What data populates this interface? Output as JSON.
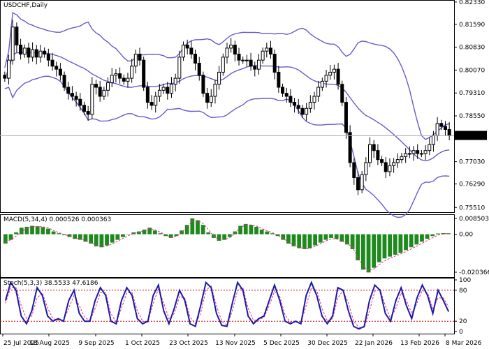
{
  "chart_data": [
    {
      "type": "candlestick",
      "panel": "price",
      "title": "USDCHF,Daily",
      "current_price": "0.77890",
      "y_ticks": [
        "0.82330",
        "0.81590",
        "0.80830",
        "0.80070",
        "0.79310",
        "0.78550",
        "0.77030",
        "0.76290",
        "0.75510"
      ],
      "ylim": [
        0.754,
        0.8235
      ],
      "bollinger_bands": true,
      "x_tick_labels": [
        "25 Jul 2025",
        "18 Aug 2025",
        "9 Sep 2025",
        "1 Oct 2025",
        "23 Oct 2025",
        "13 Nov 2025",
        "5 Dec 2025",
        "30 Dec 2025",
        "22 Jan 2026",
        "13 Feb 2026",
        "8 Mar 2026"
      ],
      "close": [
        0.798,
        0.804,
        0.815,
        0.809,
        0.806,
        0.808,
        0.805,
        0.8075,
        0.805,
        0.807,
        0.806,
        0.804,
        0.802,
        0.801,
        0.799,
        0.795,
        0.793,
        0.792,
        0.791,
        0.789,
        0.787,
        0.786,
        0.796,
        0.795,
        0.792,
        0.794,
        0.7965,
        0.799,
        0.7995,
        0.798,
        0.797,
        0.798,
        0.802,
        0.806,
        0.804,
        0.795,
        0.79,
        0.789,
        0.792,
        0.794,
        0.795,
        0.793,
        0.796,
        0.798,
        0.805,
        0.809,
        0.808,
        0.806,
        0.803,
        0.799,
        0.793,
        0.79,
        0.792,
        0.796,
        0.8,
        0.805,
        0.808,
        0.809,
        0.806,
        0.804,
        0.804,
        0.804,
        0.802,
        0.801,
        0.804,
        0.807,
        0.808,
        0.806,
        0.8,
        0.795,
        0.793,
        0.792,
        0.79,
        0.789,
        0.788,
        0.786,
        0.788,
        0.79,
        0.792,
        0.795,
        0.797,
        0.799,
        0.8,
        0.801,
        0.796,
        0.79,
        0.78,
        0.77,
        0.765,
        0.761,
        0.766,
        0.77,
        0.776,
        0.774,
        0.771,
        0.77,
        0.767,
        0.769,
        0.77,
        0.771,
        0.772,
        0.773,
        0.773,
        0.774,
        0.773,
        0.773,
        0.774,
        0.776,
        0.779,
        0.783,
        0.782,
        0.781,
        0.7789
      ]
    },
    {
      "type": "bar",
      "panel": "macd",
      "title": "MACD(5,34,4) 0.000526 0.000363",
      "y_ticks": [
        "0.008503",
        "0.00",
        "-0.020366"
      ],
      "ylim": [
        -0.0215,
        0.0092
      ],
      "values": [
        -0.005,
        -0.003,
        0.001,
        0.0035,
        0.004,
        0.0045,
        0.0042,
        0.0038,
        0.003,
        0.0015,
        0.0005,
        -0.0005,
        -0.0015,
        -0.0025,
        -0.003,
        -0.004,
        -0.005,
        -0.0065,
        -0.007,
        -0.006,
        -0.0045,
        -0.003,
        -0.0015,
        0.0,
        0.001,
        0.0015,
        0.0025,
        0.0035,
        0.002,
        0.0005,
        -0.001,
        -0.002,
        -0.001,
        0.002,
        0.005,
        0.0085,
        0.0075,
        0.005,
        0.001,
        -0.002,
        -0.0035,
        -0.003,
        -0.0015,
        0.0015,
        0.0045,
        0.0055,
        0.005,
        0.004,
        0.0025,
        0.0015,
        0.0005,
        -0.001,
        -0.003,
        -0.005,
        -0.0065,
        -0.0075,
        -0.008,
        -0.0075,
        -0.006,
        -0.0045,
        -0.003,
        -0.002,
        -0.0025,
        -0.004,
        -0.0055,
        -0.008,
        -0.014,
        -0.019,
        -0.0205,
        -0.018,
        -0.015,
        -0.013,
        -0.012,
        -0.011,
        -0.01,
        -0.0085,
        -0.007,
        -0.0055,
        -0.004,
        -0.0025,
        -0.001,
        0.0004,
        0.0006,
        0.0005
      ],
      "signal": [
        -0.004,
        -0.003,
        -0.001,
        0.0015,
        0.003,
        0.004,
        0.0042,
        0.004,
        0.0035,
        0.002,
        0.0008,
        -0.0002,
        -0.001,
        -0.002,
        -0.0026,
        -0.0034,
        -0.0044,
        -0.0058,
        -0.0066,
        -0.0062,
        -0.0052,
        -0.0038,
        -0.0022,
        -0.0008,
        0.0004,
        0.0011,
        0.002,
        0.003,
        0.0024,
        0.0011,
        -0.0004,
        -0.0015,
        -0.0012,
        0.001,
        0.0038,
        0.0072,
        0.0074,
        0.0058,
        0.0025,
        -0.001,
        -0.0028,
        -0.0029,
        -0.0019,
        0.0007,
        0.0035,
        0.005,
        0.005,
        0.0044,
        0.0031,
        0.0019,
        0.0008,
        -0.0005,
        -0.0022,
        -0.0042,
        -0.0058,
        -0.007,
        -0.0077,
        -0.0076,
        -0.0065,
        -0.0051,
        -0.0036,
        -0.0025,
        -0.0025,
        -0.0036,
        -0.0049,
        -0.0071,
        -0.0122,
        -0.0173,
        -0.0196,
        -0.0186,
        -0.0163,
        -0.0143,
        -0.0129,
        -0.0117,
        -0.0106,
        -0.0093,
        -0.0079,
        -0.0064,
        -0.0049,
        -0.0034,
        -0.0019,
        -0.0005,
        0.0002,
        0.0004
      ]
    },
    {
      "type": "line",
      "panel": "stochastic",
      "title": "Stoch(5,3,3) 38.5533 47.6186",
      "y_ticks": [
        "100",
        "80",
        "20",
        "0"
      ],
      "levels": [
        80,
        20
      ],
      "ylim": [
        0,
        100
      ],
      "k": [
        60,
        95,
        80,
        30,
        15,
        40,
        85,
        70,
        30,
        20,
        25,
        20,
        60,
        80,
        35,
        20,
        20,
        60,
        85,
        70,
        20,
        15,
        60,
        85,
        70,
        25,
        15,
        20,
        70,
        90,
        40,
        15,
        45,
        80,
        60,
        15,
        10,
        50,
        95,
        85,
        35,
        12,
        10,
        55,
        95,
        80,
        30,
        15,
        25,
        30,
        60,
        90,
        60,
        20,
        15,
        20,
        15,
        70,
        95,
        70,
        30,
        15,
        30,
        85,
        80,
        40,
        10,
        5,
        10,
        60,
        90,
        80,
        35,
        20,
        60,
        85,
        50,
        25,
        65,
        90,
        70,
        35,
        80,
        60,
        38.5
      ],
      "d": [
        55,
        85,
        85,
        50,
        25,
        30,
        65,
        75,
        45,
        25,
        22,
        22,
        45,
        70,
        50,
        28,
        20,
        45,
        75,
        75,
        35,
        18,
        45,
        75,
        75,
        40,
        20,
        18,
        55,
        82,
        55,
        25,
        35,
        68,
        65,
        28,
        15,
        35,
        80,
        88,
        50,
        20,
        12,
        40,
        80,
        85,
        45,
        22,
        22,
        28,
        50,
        78,
        68,
        32,
        18,
        18,
        17,
        50,
        85,
        80,
        45,
        20,
        25,
        65,
        80,
        55,
        20,
        8,
        8,
        40,
        78,
        82,
        50,
        25,
        45,
        75,
        60,
        35,
        55,
        80,
        75,
        45,
        65,
        65,
        47.6
      ]
    }
  ]
}
